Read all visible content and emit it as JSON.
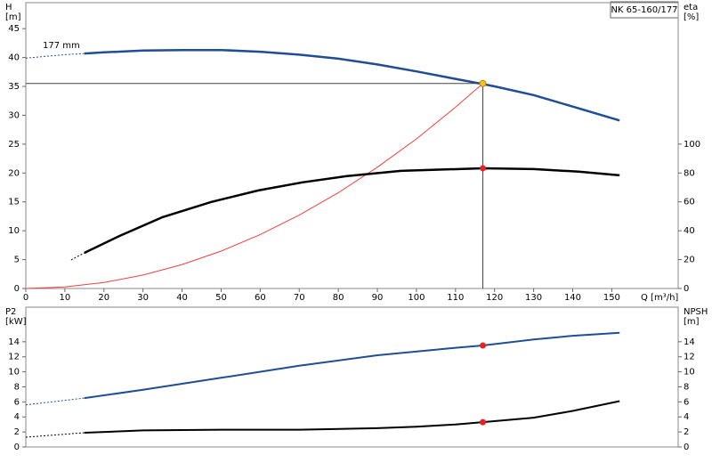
{
  "chart_data": [
    {
      "type": "line",
      "title": "NK 65-160/177",
      "annotation": "177 mm",
      "ylabel": "H",
      "yunit": "[m]",
      "y2label": "eta",
      "y2unit": "[%]",
      "xlabel": "Q [m³/h]",
      "xlim": [
        0,
        167
      ],
      "xticks": [
        0,
        10,
        20,
        30,
        40,
        50,
        60,
        70,
        80,
        90,
        100,
        110,
        120,
        130,
        140,
        150
      ],
      "ylim": [
        0,
        49.5
      ],
      "yticks": [
        0,
        5,
        10,
        15,
        20,
        25,
        30,
        35,
        40,
        45
      ],
      "y2lim": [
        0,
        198
      ],
      "y2ticks": [
        0,
        20,
        40,
        60,
        80,
        100
      ],
      "series": [
        {
          "color": "#f04040",
          "width": 1,
          "dashed": false,
          "axis": "y",
          "x": [
            0,
            10,
            20,
            30,
            40,
            50,
            60,
            70,
            80,
            90,
            100,
            110,
            117
          ],
          "values": [
            0,
            0.26,
            1.04,
            2.33,
            4.15,
            6.48,
            9.34,
            12.71,
            16.6,
            21.0,
            25.9,
            31.4,
            35.5
          ]
        },
        {
          "color": "#1f4e96",
          "width": 1,
          "dashed": true,
          "axis": "y",
          "x": [
            0,
            5,
            10,
            15
          ],
          "values": [
            39.9,
            40.2,
            40.5,
            40.7
          ]
        },
        {
          "color": "#1f4e96",
          "width": 2.5,
          "dashed": false,
          "axis": "y",
          "x": [
            15,
            20,
            30,
            40,
            50,
            60,
            70,
            80,
            90,
            100,
            110,
            117,
            120,
            130,
            140,
            152
          ],
          "values": [
            40.7,
            40.9,
            41.2,
            41.3,
            41.3,
            41.0,
            40.5,
            39.8,
            38.8,
            37.6,
            36.3,
            35.4,
            35.0,
            33.5,
            31.5,
            29.1
          ]
        },
        {
          "color": "#000000",
          "width": 1,
          "dashed": true,
          "axis": "y2",
          "x": [
            11.6,
            15
          ],
          "values": [
            19.8,
            24.7
          ]
        },
        {
          "color": "#000000",
          "width": 2.5,
          "dashed": false,
          "axis": "y2",
          "x": [
            15,
            24,
            35,
            47.4,
            59.5,
            70.8,
            82,
            96,
            117,
            130,
            141.5,
            152
          ],
          "values": [
            24.7,
            36.4,
            49.4,
            59.9,
            67.9,
            73.5,
            77.8,
            81.5,
            83.3,
            82.7,
            80.9,
            78.4
          ]
        }
      ],
      "markers": [
        {
          "x": 117,
          "y": 35.5,
          "axis": "y",
          "color": "#f5c518",
          "crosshair": true
        },
        {
          "x": 117,
          "y": 83.3,
          "axis": "y2",
          "color": "#e82020",
          "crosshair": false
        }
      ]
    },
    {
      "type": "line",
      "ylabel": "P2",
      "yunit": "[kW]",
      "y2label": "NPSH",
      "y2unit": "[m]",
      "xlim": [
        0,
        167
      ],
      "ylim": [
        0,
        18.6
      ],
      "yticks": [
        0,
        2,
        4,
        6,
        8,
        10,
        12,
        14
      ],
      "y2lim": [
        0,
        18.6
      ],
      "y2ticks": [
        0,
        2,
        4,
        6,
        8,
        10,
        12,
        14
      ],
      "series": [
        {
          "color": "#1f4e96",
          "width": 1,
          "dashed": true,
          "axis": "y",
          "x": [
            0,
            15
          ],
          "values": [
            5.6,
            6.5
          ]
        },
        {
          "color": "#1f4e96",
          "width": 2,
          "dashed": false,
          "axis": "y",
          "x": [
            15,
            30,
            50,
            70,
            90,
            110,
            117,
            130,
            140,
            152
          ],
          "values": [
            6.5,
            7.6,
            9.2,
            10.8,
            12.2,
            13.2,
            13.5,
            14.3,
            14.8,
            15.2
          ]
        },
        {
          "color": "#000000",
          "width": 1,
          "dashed": true,
          "axis": "y2",
          "x": [
            0,
            15
          ],
          "values": [
            1.3,
            1.9
          ]
        },
        {
          "color": "#000000",
          "width": 2,
          "dashed": false,
          "axis": "y2",
          "x": [
            15,
            30,
            50,
            70,
            90,
            100,
            110,
            117,
            130,
            140,
            152
          ],
          "values": [
            1.9,
            2.2,
            2.3,
            2.3,
            2.5,
            2.7,
            3.0,
            3.3,
            3.9,
            4.8,
            6.1
          ]
        }
      ],
      "markers": [
        {
          "x": 117,
          "y": 13.5,
          "axis": "y",
          "color": "#e82020",
          "crosshair": false
        },
        {
          "x": 117,
          "y": 3.3,
          "axis": "y2",
          "color": "#e82020",
          "crosshair": false
        }
      ]
    }
  ]
}
